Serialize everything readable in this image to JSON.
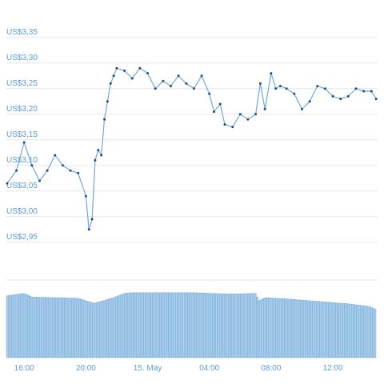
{
  "chart_data": {
    "type": "line",
    "price": {
      "ylim": [
        2.92,
        3.37
      ],
      "yticks": [
        {
          "value": 3.35,
          "label": "US$3,35"
        },
        {
          "value": 3.3,
          "label": "US$3,30"
        },
        {
          "value": 3.25,
          "label": "US$3,25"
        },
        {
          "value": 3.2,
          "label": "US$3,20"
        },
        {
          "value": 3.15,
          "label": "US$3,15"
        },
        {
          "value": 3.1,
          "label": "US$3,10"
        },
        {
          "value": 3.05,
          "label": "US$3,05"
        },
        {
          "value": 3.0,
          "label": "US$3,00"
        },
        {
          "value": 2.95,
          "label": "US$2,95"
        }
      ],
      "x": [
        14.9,
        15.5,
        16.0,
        16.5,
        17.0,
        17.5,
        18.0,
        18.5,
        19.0,
        19.5,
        20.0,
        20.2,
        20.4,
        20.6,
        20.8,
        21.0,
        21.2,
        21.4,
        21.6,
        21.8,
        22.0,
        22.5,
        23.0,
        23.5,
        24.0,
        24.5,
        25.0,
        25.5,
        26.0,
        26.5,
        27.0,
        27.5,
        28.0,
        28.3,
        28.7,
        29.0,
        29.5,
        30.0,
        30.5,
        31.0,
        31.3,
        31.6,
        32.0,
        32.3,
        32.6,
        33.0,
        33.5,
        34.0,
        34.5,
        35.0,
        35.5,
        36.0,
        36.5,
        37.0,
        37.5,
        38.0,
        38.5,
        38.8
      ],
      "values": [
        3.065,
        3.09,
        3.145,
        3.1,
        3.07,
        3.09,
        3.12,
        3.1,
        3.09,
        3.085,
        3.04,
        2.975,
        2.995,
        3.11,
        3.13,
        3.12,
        3.19,
        3.225,
        3.26,
        3.275,
        3.29,
        3.285,
        3.27,
        3.29,
        3.28,
        3.25,
        3.265,
        3.255,
        3.275,
        3.26,
        3.25,
        3.275,
        3.24,
        3.205,
        3.22,
        3.18,
        3.175,
        3.2,
        3.19,
        3.2,
        3.26,
        3.21,
        3.28,
        3.25,
        3.255,
        3.25,
        3.24,
        3.21,
        3.225,
        3.255,
        3.25,
        3.235,
        3.23,
        3.235,
        3.25,
        3.245,
        3.245,
        3.23
      ]
    },
    "volume": {
      "x": [
        14.9,
        16.0,
        16.5,
        18.0,
        19.5,
        20.5,
        21.0,
        21.8,
        22.5,
        23.0,
        25.0,
        27.0,
        29.0,
        30.0,
        31.0,
        31.2,
        31.6,
        33.0,
        35.0,
        37.0,
        38.3,
        38.8
      ],
      "values": [
        1.0,
        1.04,
        0.98,
        0.97,
        0.96,
        0.88,
        0.91,
        0.97,
        1.04,
        1.05,
        1.05,
        1.05,
        1.03,
        1.03,
        1.04,
        0.92,
        0.97,
        0.95,
        0.91,
        0.87,
        0.83,
        0.78
      ],
      "ylim": [
        0,
        1.1
      ]
    },
    "xlim": [
      14.85,
      38.9
    ],
    "xticks": [
      {
        "value": 16,
        "label": "16:00"
      },
      {
        "value": 20,
        "label": "20:00"
      },
      {
        "value": 24,
        "label": "15. May"
      },
      {
        "value": 28,
        "label": "04:00"
      },
      {
        "value": 32,
        "label": "08:00"
      },
      {
        "value": 36,
        "label": "12:00"
      }
    ],
    "grid": true,
    "legend": "none"
  }
}
